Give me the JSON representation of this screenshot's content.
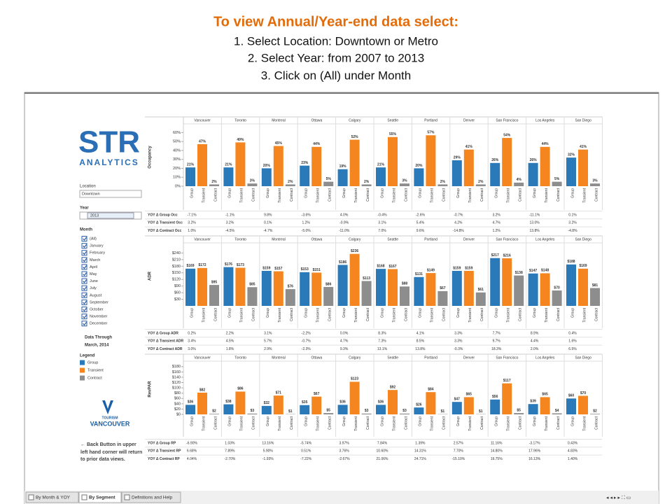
{
  "header": {
    "title": "To view Annual/Year-end data select:",
    "steps": [
      "1. Select Location: Downtown or Metro",
      "2. Select Year: from 2007 to 2013",
      "3.  Click on (All) under Month"
    ]
  },
  "sidebar": {
    "logo": {
      "brand": "STR",
      "sub": "ANALYTICS"
    },
    "location_label": "Location",
    "location": "Downtown",
    "year_label": "Year",
    "year": "2013",
    "month_label": "Month",
    "months": [
      "(All)",
      "January",
      "February",
      "March",
      "April",
      "May",
      "June",
      "July",
      "August",
      "September",
      "October",
      "November",
      "December"
    ],
    "data_through_label": "Data Through",
    "data_through": "March, 2014",
    "legend_label": "Legend",
    "partner_logo": {
      "line1": "TOURISM",
      "line2": "VANCOUVER"
    },
    "back_note": "← Back Button in upper left hand corner will return to prior data views."
  },
  "dashboard": {
    "cities": [
      "Vancouver",
      "Toronto",
      "Montreal",
      "Ottawa",
      "Calgary",
      "Seattle",
      "Portland",
      "Denver",
      "San Francisco",
      "Los Angeles",
      "San Diego"
    ],
    "segments": [
      {
        "name": "Group",
        "color": "#2a79b9"
      },
      {
        "name": "Transient",
        "color": "#f5861f"
      },
      {
        "name": "Contract",
        "color": "#8d8d8d"
      }
    ],
    "panels": [
      {
        "axis_label": "Occupancy",
        "ylim": [
          0,
          65
        ],
        "yticks": [
          {
            "value": 0,
            "label": "0%"
          },
          {
            "value": 10,
            "label": "10%"
          },
          {
            "value": 20,
            "label": "20%"
          },
          {
            "value": 30,
            "label": "30%"
          },
          {
            "value": 40,
            "label": "40%"
          },
          {
            "value": 50,
            "label": "50%"
          },
          {
            "value": 60,
            "label": "60%"
          }
        ],
        "series": [
          {
            "values": [
              21,
              21,
              20,
              23,
              19,
              21,
              20,
              29,
              26,
              26,
              32
            ],
            "value_labels": [
              "21%",
              "21%",
              "20%",
              "23%",
              "19%",
              "21%",
              "20%",
              "29%",
              "26%",
              "26%",
              "32%"
            ]
          },
          {
            "values": [
              47,
              49,
              45,
              44,
              52,
              55,
              57,
              41,
              54,
              44,
              41
            ],
            "value_labels": [
              "47%",
              "49%",
              "45%",
              "44%",
              "52%",
              "55%",
              "57%",
              "41%",
              "54%",
              "44%",
              "41%"
            ]
          },
          {
            "values": [
              2,
              3,
              2,
              5,
              2,
              3,
              2,
              2,
              4,
              5,
              3
            ],
            "value_labels": [
              "2%",
              "3%",
              "2%",
              "5%",
              "2%",
              "3%",
              "2%",
              "2%",
              "4%",
              "5%",
              "3%"
            ]
          }
        ],
        "yoy": [
          {
            "label": "YOY Δ Group Occ",
            "values": [
              "-7.1%",
              "-1.1%",
              "9.8%",
              "-3.6%",
              "4.0%",
              "-0.4%",
              "-2.6%",
              "-0.7%",
              "3.2%",
              "-11.1%",
              "0.1%"
            ]
          },
          {
            "label": "YOY Δ Transient Occ",
            "values": [
              "3.2%",
              "3.2%",
              "0.1%",
              "1.2%",
              "-0.9%",
              "3.1%",
              "5.4%",
              "4.2%",
              "4.7%",
              "13.0%",
              "3.2%"
            ]
          },
          {
            "label": "YOY Δ Contract Occ",
            "values": [
              "1.0%",
              "-4.5%",
              "-4.7%",
              "-5.0%",
              "-11.0%",
              "7.0%",
              "9.6%",
              "-14.8%",
              "1.2%",
              "13.8%",
              "-4.8%"
            ]
          }
        ]
      },
      {
        "axis_label": "ADR",
        "ylim": [
          0,
          270
        ],
        "yticks": [
          {
            "value": 30,
            "label": "$30"
          },
          {
            "value": 60,
            "label": "$60"
          },
          {
            "value": 90,
            "label": "$90"
          },
          {
            "value": 120,
            "label": "$120"
          },
          {
            "value": 150,
            "label": "$150"
          },
          {
            "value": 180,
            "label": "$180"
          },
          {
            "value": 210,
            "label": "$210"
          },
          {
            "value": 240,
            "label": "$240"
          }
        ],
        "series": [
          {
            "values": [
              169,
              176,
              159,
              153,
              186,
              168,
              131,
              159,
              217,
              147,
              188
            ],
            "value_labels": [
              "$169",
              "$176",
              "$159",
              "$153",
              "$186",
              "$168",
              "$131",
              "$159",
              "$217",
              "$147",
              "$188"
            ]
          },
          {
            "values": [
              172,
              173,
              157,
              151,
              236,
              167,
              149,
              159,
              216,
              148,
              169
            ],
            "value_labels": [
              "$172",
              "$173",
              "$157",
              "$151",
              "$236",
              "$167",
              "$149",
              "$159",
              "$216",
              "$148",
              "$169"
            ]
          },
          {
            "values": [
              95,
              85,
              76,
              86,
              113,
              88,
              67,
              61,
              138,
              70,
              81
            ],
            "value_labels": [
              "$95",
              "$85",
              "$76",
              "$86",
              "$113",
              "$88",
              "$67",
              "$61",
              "$138",
              "$70",
              "$81"
            ]
          }
        ],
        "yoy": [
          {
            "label": "YOY Δ Group ADR",
            "values": [
              "0.2%",
              "2.2%",
              "3.1%",
              "-2.2%",
              "0.0%",
              "8.3%",
              "4.1%",
              "3.3%",
              "7.7%",
              "8.9%",
              "0.4%"
            ]
          },
          {
            "label": "YOY Δ Transient ADR",
            "values": [
              "3.4%",
              "4.5%",
              "5.7%",
              "-0.7%",
              "4.7%",
              "7.3%",
              "8.5%",
              "3.3%",
              "9.7%",
              "4.4%",
              "1.6%"
            ]
          },
          {
            "label": "YOY Δ Contract ADR",
            "values": [
              "3.0%",
              "1.8%",
              "2.9%",
              "-2.3%",
              "9.3%",
              "13.1%",
              "13.8%",
              "-0.3%",
              "18.3%",
              "2.0%",
              "6.5%"
            ]
          }
        ]
      },
      {
        "axis_label": "RevPAR",
        "ylim": [
          0,
          190
        ],
        "yticks": [
          {
            "value": 0,
            "label": "$0"
          },
          {
            "value": 20,
            "label": "$20"
          },
          {
            "value": 40,
            "label": "$40"
          },
          {
            "value": 60,
            "label": "$60"
          },
          {
            "value": 80,
            "label": "$80"
          },
          {
            "value": 100,
            "label": "$100"
          },
          {
            "value": 120,
            "label": "$120"
          },
          {
            "value": 140,
            "label": "$140"
          },
          {
            "value": 160,
            "label": "$160"
          },
          {
            "value": 180,
            "label": "$180"
          }
        ],
        "series": [
          {
            "values": [
              36,
              38,
              32,
              35,
              36,
              36,
              26,
              47,
              56,
              39,
              60
            ],
            "value_labels": [
              "$36",
              "$38",
              "$32",
              "$35",
              "$36",
              "$36",
              "$26",
              "$47",
              "$56",
              "$39",
              "$60"
            ]
          },
          {
            "values": [
              82,
              86,
              71,
              67,
              123,
              92,
              84,
              65,
              117,
              65,
              70
            ],
            "value_labels": [
              "$82",
              "$86",
              "$71",
              "$67",
              "$123",
              "$92",
              "$84",
              "$65",
              "$117",
              "$65",
              "$70"
            ]
          },
          {
            "values": [
              2,
              3,
              1,
              5,
              3,
              3,
              1,
              1,
              5,
              4,
              2
            ],
            "value_labels": [
              "$2",
              "$3",
              "$1",
              "$5",
              "$3",
              "$3",
              "$1",
              "$1",
              "$5",
              "$4",
              "$2"
            ]
          }
        ],
        "yoy": [
          {
            "label": "YOY Δ Group RP",
            "values": [
              "-6.90%",
              "1.03%",
              "13.16%",
              "-5.74%",
              "3.97%",
              "7.84%",
              "1.39%",
              "2.57%",
              "11.16%",
              "-3.17%",
              "0.43%"
            ]
          },
          {
            "label": "YOY Δ Transient RP",
            "values": [
              "6.68%",
              "7.89%",
              "5.90%",
              "0.51%",
              "3.76%",
              "10.60%",
              "14.31%",
              "7.70%",
              "14.80%",
              "17.96%",
              "4.83%"
            ]
          },
          {
            "label": "YOY Δ Contract RP",
            "values": [
              "4.04%",
              "-2.70%",
              "-1.93%",
              "-7.22%",
              "-2.67%",
              "21.06%",
              "24.71%",
              "-15.10%",
              "19.75%",
              "16.13%",
              "1.40%"
            ]
          }
        ]
      }
    ]
  },
  "tabs": [
    "By Month & YOY",
    "By Segment",
    "Definitions and Help"
  ]
}
